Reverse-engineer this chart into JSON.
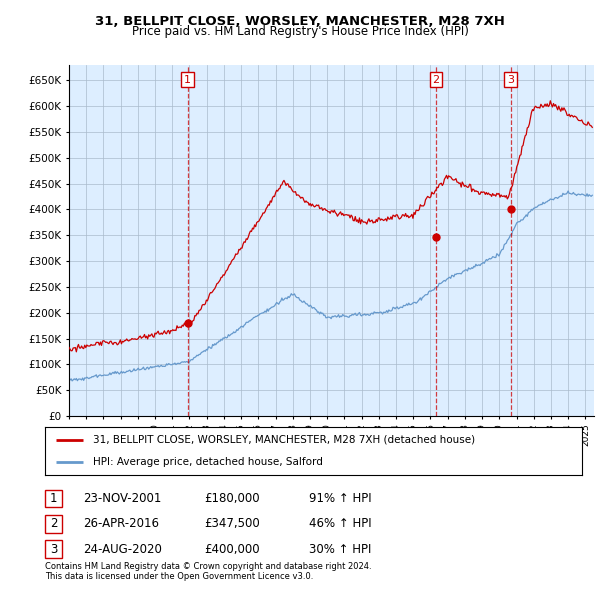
{
  "title1": "31, BELLPIT CLOSE, WORSLEY, MANCHESTER, M28 7XH",
  "title2": "Price paid vs. HM Land Registry's House Price Index (HPI)",
  "ylim": [
    0,
    680000
  ],
  "yticks": [
    0,
    50000,
    100000,
    150000,
    200000,
    250000,
    300000,
    350000,
    400000,
    450000,
    500000,
    550000,
    600000,
    650000
  ],
  "xlim_start": 1995,
  "xlim_end": 2025.5,
  "legend_label_red": "31, BELLPIT CLOSE, WORSLEY, MANCHESTER, M28 7XH (detached house)",
  "legend_label_blue": "HPI: Average price, detached house, Salford",
  "transactions": [
    {
      "num": 1,
      "date": "23-NOV-2001",
      "price": "£180,000",
      "pct": "91% ↑ HPI",
      "x_year": 2001.9,
      "y_val": 180000
    },
    {
      "num": 2,
      "date": "26-APR-2016",
      "price": "£347,500",
      "pct": "46% ↑ HPI",
      "x_year": 2016.32,
      "y_val": 347500
    },
    {
      "num": 3,
      "date": "24-AUG-2020",
      "price": "£400,000",
      "pct": "30% ↑ HPI",
      "x_year": 2020.65,
      "y_val": 400000
    }
  ],
  "footnote1": "Contains HM Land Registry data © Crown copyright and database right 2024.",
  "footnote2": "This data is licensed under the Open Government Licence v3.0.",
  "red_color": "#cc0000",
  "blue_color": "#6699cc",
  "chart_bg": "#ddeeff",
  "background_color": "#ffffff",
  "grid_color": "#aabbcc"
}
